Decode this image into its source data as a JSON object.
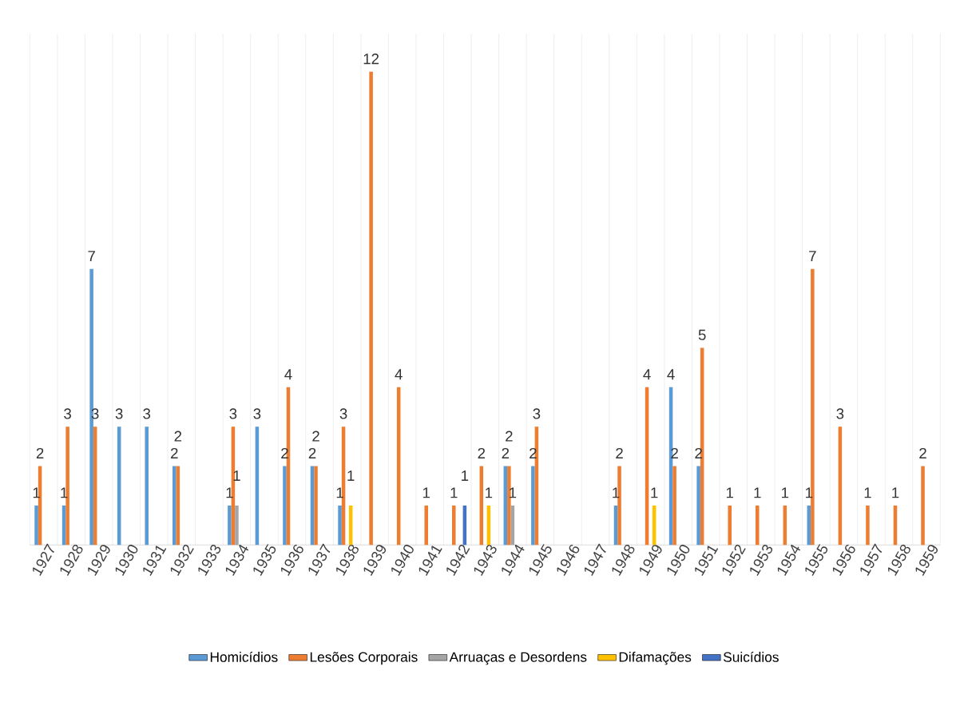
{
  "chart_data": {
    "type": "bar",
    "categories": [
      "1927",
      "1928",
      "1929",
      "1930",
      "1931",
      "1932",
      "1933",
      "1934",
      "1935",
      "1936",
      "1937",
      "1938",
      "1939",
      "1940",
      "1941",
      "1942",
      "1943",
      "1944",
      "1945",
      "1946",
      "1947",
      "1948",
      "1949",
      "1950",
      "1951",
      "1952",
      "1953",
      "1954",
      "1955",
      "1956",
      "1957",
      "1958",
      "1959"
    ],
    "series": [
      {
        "name": "Homicídios",
        "color": "#5b9bd5",
        "values": [
          1,
          1,
          7,
          3,
          3,
          2,
          null,
          1,
          3,
          2,
          2,
          1,
          null,
          null,
          null,
          null,
          null,
          2,
          2,
          null,
          null,
          1,
          null,
          4,
          2,
          null,
          null,
          null,
          1,
          null,
          null,
          null,
          null
        ]
      },
      {
        "name": "Lesões Corporais",
        "color": "#ed7d31",
        "values": [
          2,
          3,
          3,
          null,
          null,
          2,
          null,
          3,
          null,
          4,
          2,
          3,
          12,
          4,
          1,
          1,
          2,
          2,
          3,
          null,
          null,
          2,
          4,
          2,
          5,
          1,
          1,
          1,
          7,
          3,
          1,
          1,
          2
        ]
      },
      {
        "name": "Arruaças e Desordens",
        "color": "#a5a5a5",
        "values": [
          null,
          null,
          null,
          null,
          null,
          null,
          null,
          1,
          null,
          null,
          null,
          null,
          null,
          null,
          null,
          null,
          null,
          1,
          null,
          null,
          null,
          null,
          null,
          null,
          null,
          null,
          null,
          null,
          null,
          null,
          null,
          null,
          null
        ]
      },
      {
        "name": "Difamações",
        "color": "#ffc000",
        "values": [
          null,
          null,
          null,
          null,
          null,
          null,
          null,
          null,
          null,
          null,
          null,
          1,
          null,
          null,
          null,
          null,
          1,
          null,
          null,
          null,
          null,
          null,
          1,
          null,
          null,
          null,
          null,
          null,
          null,
          null,
          null,
          null,
          null
        ]
      },
      {
        "name": "Suicídios",
        "color": "#4472c4",
        "values": [
          null,
          null,
          null,
          null,
          null,
          null,
          null,
          null,
          null,
          null,
          null,
          null,
          null,
          null,
          null,
          1,
          null,
          null,
          null,
          null,
          null,
          null,
          null,
          null,
          null,
          null,
          null,
          null,
          null,
          null,
          null,
          null,
          null
        ]
      }
    ],
    "data_labels": true,
    "grid": "x",
    "legend": "bottom"
  }
}
